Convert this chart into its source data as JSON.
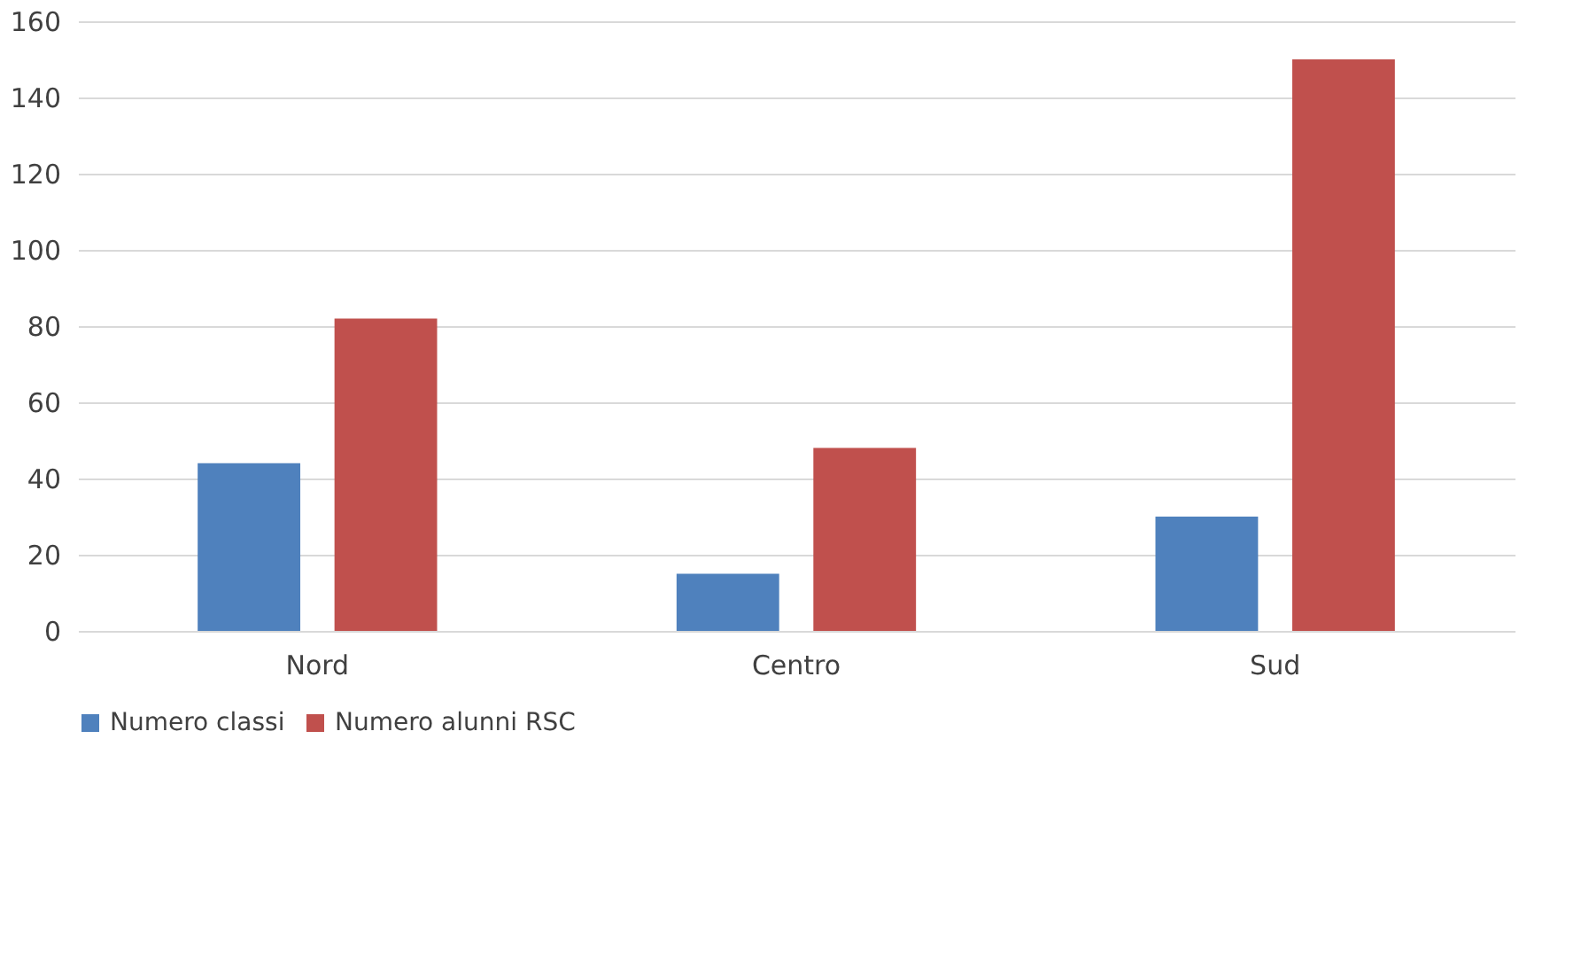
{
  "chart_data": {
    "type": "bar",
    "categories": [
      "Nord",
      "Centro",
      "Sud"
    ],
    "series": [
      {
        "name": "Numero classi",
        "color": "#4f81bd",
        "values": [
          44,
          15,
          30
        ]
      },
      {
        "name": "Numero alunni RSC",
        "color": "#c0504d",
        "values": [
          82,
          48,
          150
        ]
      }
    ],
    "ylim": [
      0,
      160
    ],
    "yticks": [
      0,
      20,
      40,
      60,
      80,
      100,
      120,
      140,
      160
    ],
    "grid": "y",
    "legend": "bottom"
  }
}
